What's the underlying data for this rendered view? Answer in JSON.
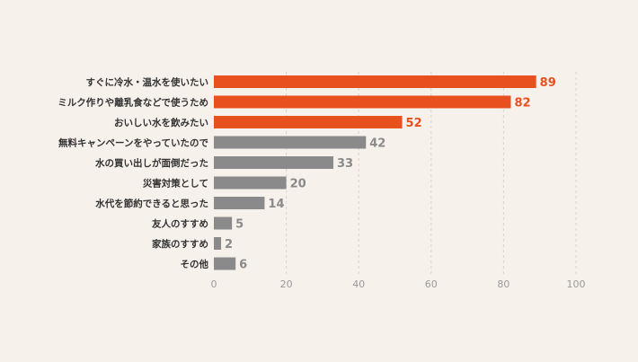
{
  "chart_data": {
    "type": "bar",
    "orientation": "horizontal",
    "categories": [
      "すぐに冷水・温水を使いたい",
      "ミルク作りや離乳食などで使うため",
      "おいしい水を飲みたい",
      "無料キャンペーンをやっていたので",
      "水の買い出しが面倒だった",
      "災害対策として",
      "水代を節約できると思った",
      "友人のすすめ",
      "家族のすすめ",
      "その他"
    ],
    "values": [
      89,
      82,
      52,
      42,
      33,
      20,
      14,
      5,
      2,
      6
    ],
    "highlighted": [
      true,
      true,
      true,
      false,
      false,
      false,
      false,
      false,
      false,
      false
    ],
    "xlim": [
      0,
      100
    ],
    "xticks": [
      "0",
      "20",
      "40",
      "60",
      "80",
      "100"
    ],
    "grid": "vertical dashed",
    "colors": {
      "highlight": "#e8501e",
      "normal": "#8a8a8a",
      "background": "#f7f1ec"
    }
  }
}
